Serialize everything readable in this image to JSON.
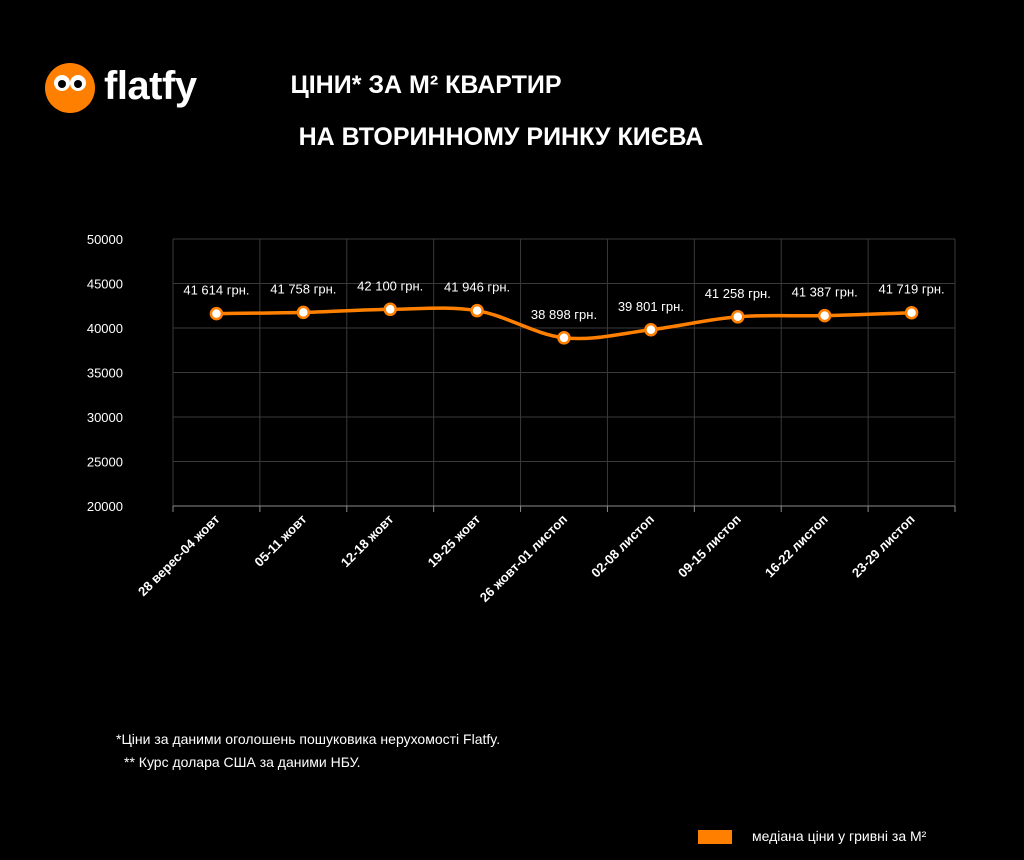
{
  "brand": {
    "name": "flatfy"
  },
  "header": {
    "title_line1": "ЦІНИ* ЗА М² КВАРТИР",
    "title_line2": "НА ВТОРИННОМУ РИНКУ КИЄВА"
  },
  "footnotes": {
    "note1": "*Ціни за даними оголошень пошуковика нерухомості Flatfy.",
    "note2": "** Курс долара США за даними НБУ."
  },
  "legend": {
    "label": "медіана ціни у гривні за М²",
    "color": "#ff8000"
  },
  "chart_data": {
    "type": "line",
    "categories": [
      "28 верес-04 жовт",
      "05-11 жовт",
      "12-18 жовт",
      "19-25 жовт",
      "26 жовт-01 листоп",
      "02-08 листоп",
      "09-15 листоп",
      "16-22 листоп",
      "23-29 листоп"
    ],
    "series": [
      {
        "name": "медіана ціни у гривні за М²",
        "values": [
          41614,
          41758,
          42100,
          41946,
          38898,
          39801,
          41258,
          41387,
          41719
        ],
        "color": "#ff8000"
      }
    ],
    "data_labels": [
      "41 614 грн.",
      "41 758 грн.",
      "42 100 грн.",
      "41 946 грн.",
      "38 898 грн.",
      "39 801 грн.",
      "41 258 грн.",
      "41 387 грн.",
      "41 719 грн."
    ],
    "yticks": [
      "20000",
      "25000",
      "30000",
      "35000",
      "40000",
      "45000",
      "50000"
    ],
    "ylim": [
      20000,
      50000
    ],
    "grid": true,
    "legend_position": "bottom-right"
  }
}
